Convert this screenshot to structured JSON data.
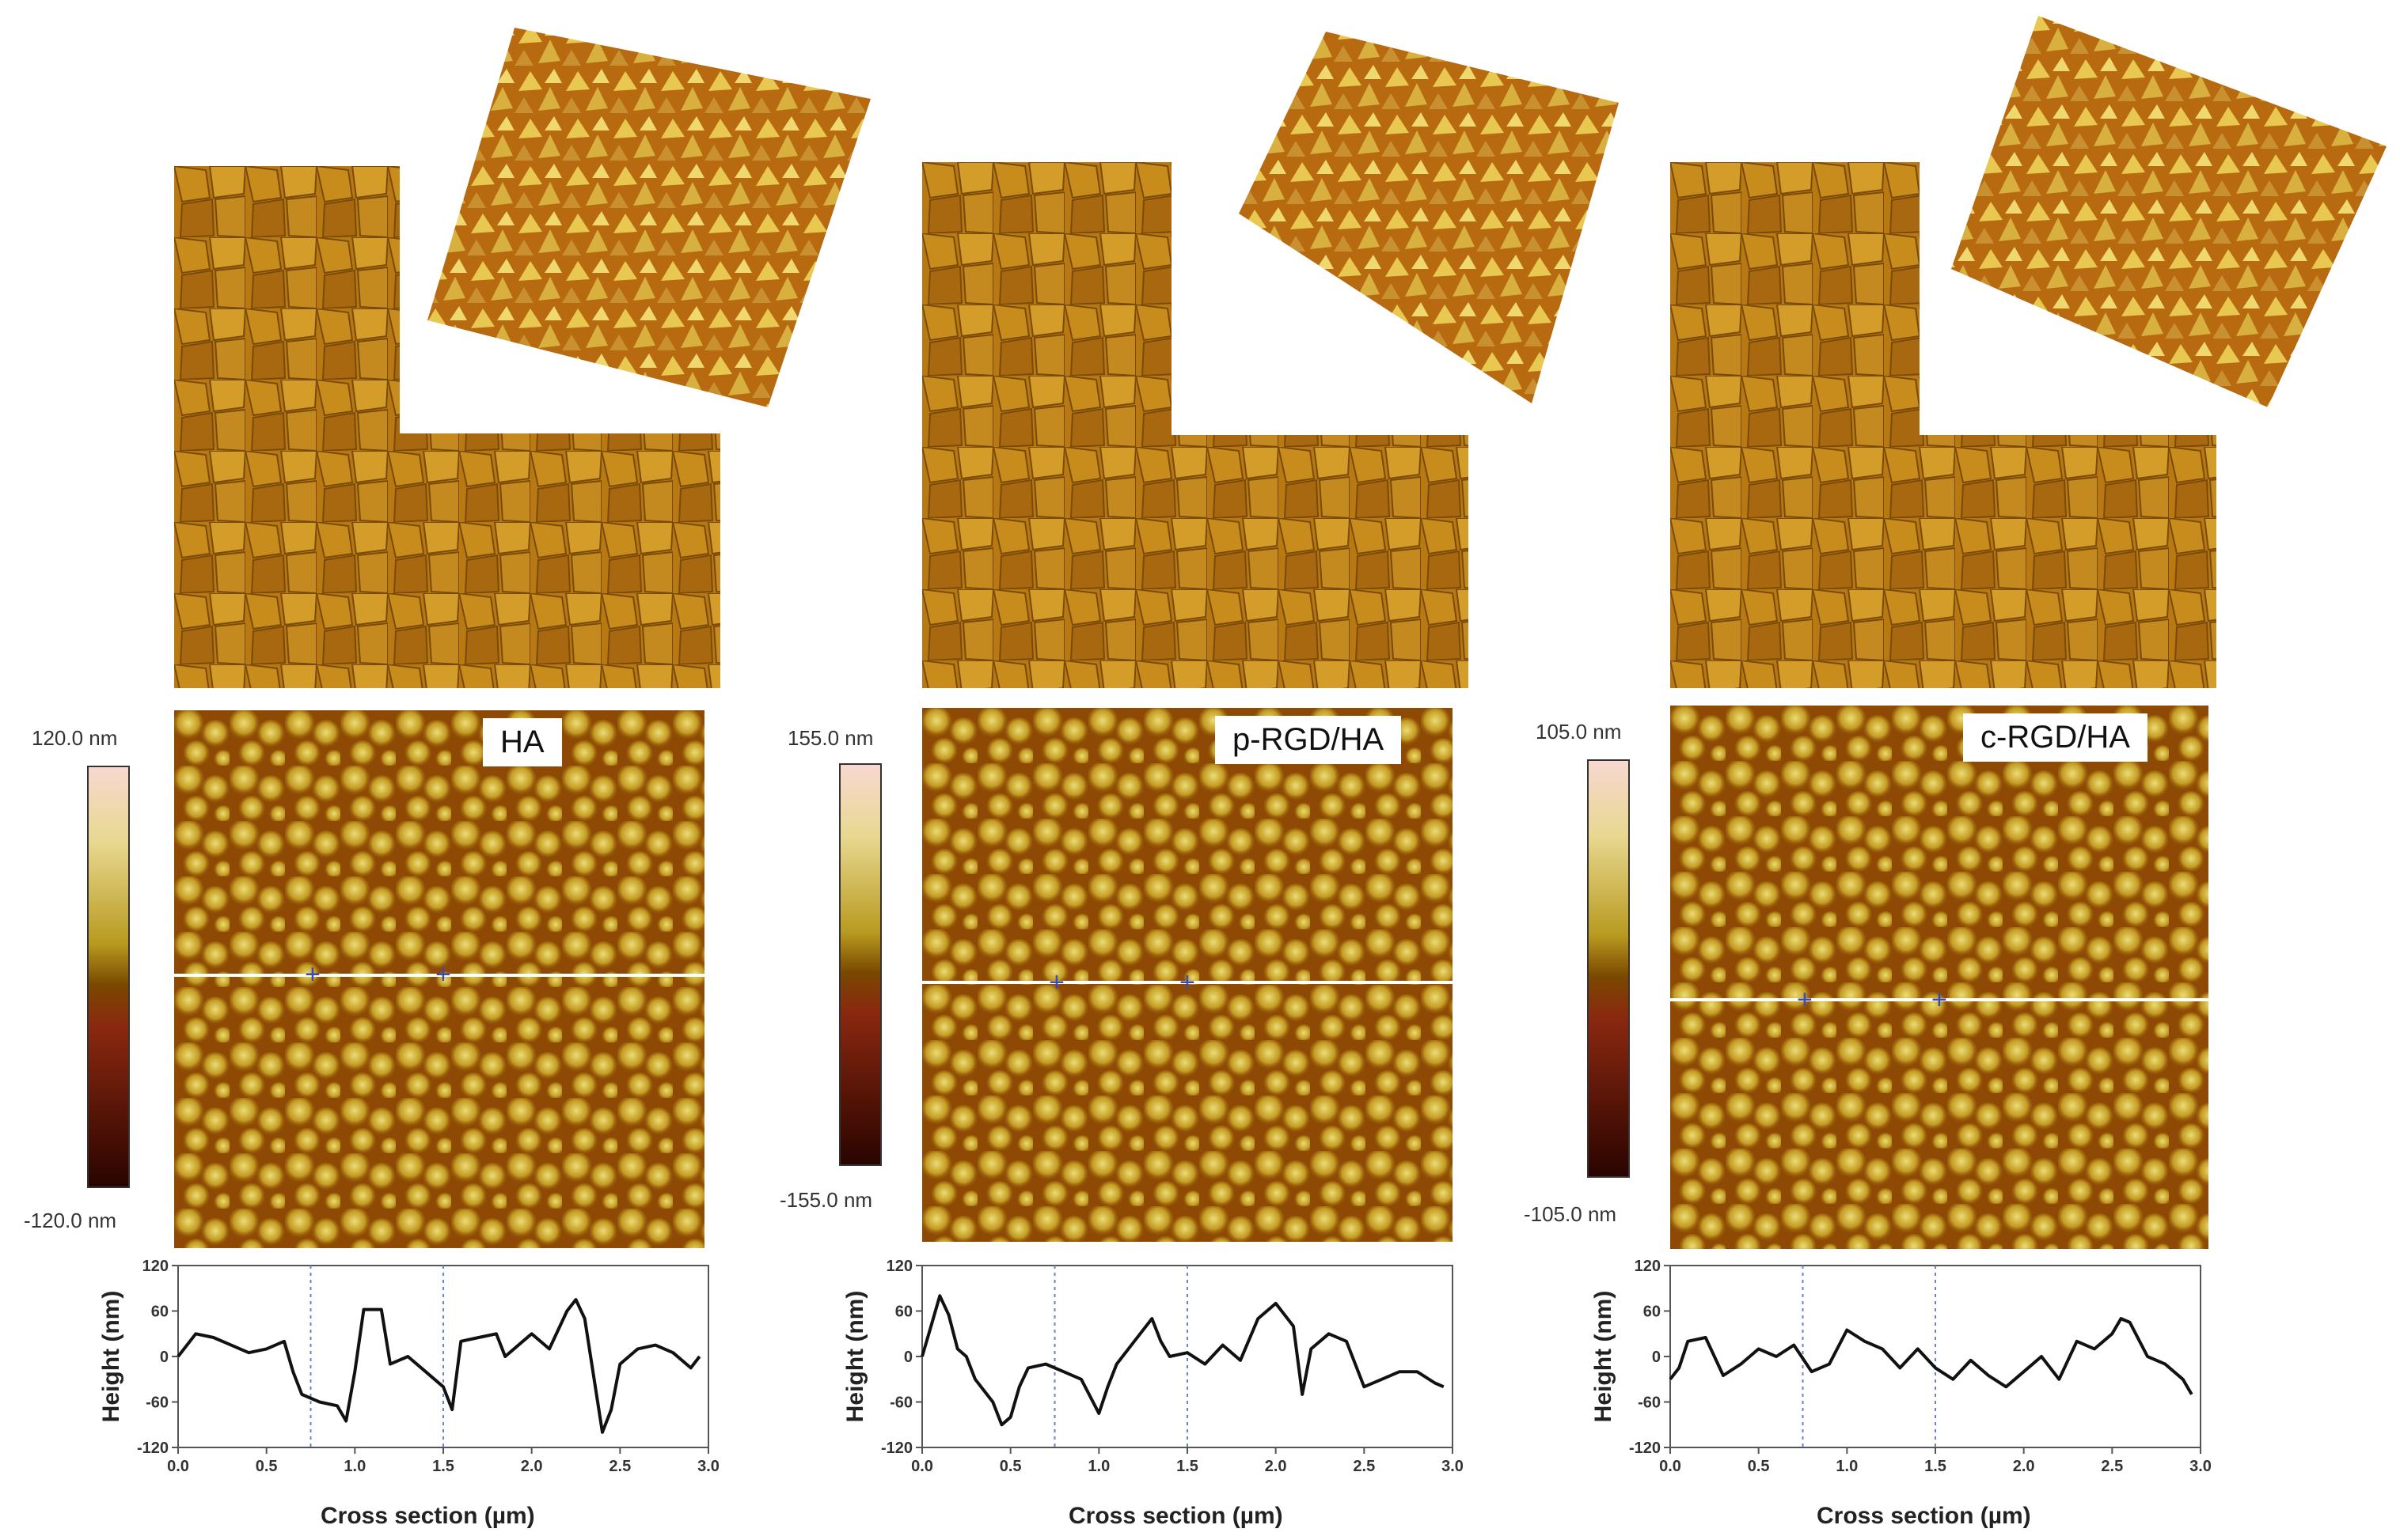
{
  "colors": {
    "afm_low": "#3a0a00",
    "afm_mid": "#a35a00",
    "afm_high": "#f0e080",
    "profile_line": "#111111",
    "marker_line": "#6a7fd8",
    "scan_line": "#ffffff"
  },
  "panels": [
    {
      "label": "HA",
      "colorbar": {
        "max": "120.0 nm",
        "min": "-120.0 nm"
      },
      "chart_data": {
        "type": "line",
        "xlabel": "Cross section (µm)",
        "ylabel": "Height (nm)",
        "xlim": [
          0.0,
          3.0
        ],
        "ylim": [
          -120,
          120
        ],
        "xticks": [
          "0.0",
          "0.5",
          "1.0",
          "1.5",
          "2.0",
          "2.5",
          "3.0"
        ],
        "yticks": [
          "120",
          "60",
          "0",
          "-60",
          "-120"
        ],
        "markers": [
          0.75,
          1.5
        ],
        "x": [
          0.0,
          0.1,
          0.2,
          0.3,
          0.4,
          0.5,
          0.6,
          0.65,
          0.7,
          0.75,
          0.8,
          0.9,
          0.95,
          1.0,
          1.05,
          1.15,
          1.2,
          1.3,
          1.4,
          1.5,
          1.55,
          1.6,
          1.7,
          1.8,
          1.85,
          1.95,
          2.0,
          2.1,
          2.2,
          2.25,
          2.3,
          2.4,
          2.45,
          2.5,
          2.6,
          2.7,
          2.8,
          2.9,
          2.95
        ],
        "y": [
          0,
          30,
          25,
          15,
          5,
          10,
          20,
          -20,
          -50,
          -55,
          -60,
          -65,
          -85,
          -20,
          62,
          62,
          -10,
          0,
          -20,
          -40,
          -70,
          20,
          25,
          30,
          0,
          20,
          30,
          10,
          60,
          75,
          50,
          -100,
          -70,
          -10,
          10,
          15,
          5,
          -15,
          0
        ]
      }
    },
    {
      "label": "p-RGD/HA",
      "colorbar": {
        "max": "155.0 nm",
        "min": "-155.0 nm"
      },
      "chart_data": {
        "type": "line",
        "xlabel": "Cross section (µm)",
        "ylabel": "Height (nm)",
        "xlim": [
          0.0,
          3.0
        ],
        "ylim": [
          -120,
          120
        ],
        "xticks": [
          "0.0",
          "0.5",
          "1.0",
          "1.5",
          "2.0",
          "2.5",
          "3.0"
        ],
        "yticks": [
          "120",
          "60",
          "0",
          "-60",
          "-120"
        ],
        "markers": [
          0.75,
          1.5
        ],
        "x": [
          0.0,
          0.05,
          0.1,
          0.15,
          0.2,
          0.25,
          0.3,
          0.4,
          0.45,
          0.5,
          0.55,
          0.6,
          0.7,
          0.8,
          0.9,
          1.0,
          1.05,
          1.1,
          1.2,
          1.3,
          1.35,
          1.4,
          1.5,
          1.6,
          1.7,
          1.8,
          1.9,
          2.0,
          2.1,
          2.15,
          2.2,
          2.3,
          2.4,
          2.5,
          2.6,
          2.7,
          2.8,
          2.9,
          2.95
        ],
        "y": [
          0,
          40,
          80,
          55,
          10,
          0,
          -30,
          -60,
          -90,
          -80,
          -40,
          -15,
          -10,
          -20,
          -30,
          -75,
          -40,
          -10,
          20,
          50,
          20,
          0,
          5,
          -10,
          15,
          -5,
          50,
          70,
          40,
          -50,
          10,
          30,
          20,
          -40,
          -30,
          -20,
          -20,
          -35,
          -40
        ]
      }
    },
    {
      "label": "c-RGD/HA",
      "colorbar": {
        "max": "105.0 nm",
        "min": "-105.0 nm"
      },
      "chart_data": {
        "type": "line",
        "xlabel": "Cross section (µm)",
        "ylabel": "Height (nm)",
        "xlim": [
          0.0,
          3.0
        ],
        "ylim": [
          -120,
          120
        ],
        "xticks": [
          "0.0",
          "0.5",
          "1.0",
          "1.5",
          "2.0",
          "2.5",
          "3.0"
        ],
        "yticks": [
          "120",
          "60",
          "0",
          "-60",
          "-120"
        ],
        "markers": [
          0.75,
          1.5
        ],
        "x": [
          0.0,
          0.05,
          0.1,
          0.2,
          0.3,
          0.4,
          0.5,
          0.6,
          0.7,
          0.8,
          0.9,
          1.0,
          1.1,
          1.2,
          1.3,
          1.4,
          1.5,
          1.6,
          1.7,
          1.8,
          1.9,
          2.0,
          2.1,
          2.2,
          2.3,
          2.4,
          2.5,
          2.55,
          2.6,
          2.7,
          2.8,
          2.9,
          2.95
        ],
        "y": [
          -30,
          -15,
          20,
          25,
          -25,
          -10,
          10,
          0,
          15,
          -20,
          -10,
          35,
          20,
          10,
          -15,
          10,
          -15,
          -30,
          -5,
          -25,
          -40,
          -20,
          0,
          -30,
          20,
          10,
          30,
          50,
          45,
          0,
          -10,
          -30,
          -50
        ]
      }
    }
  ]
}
